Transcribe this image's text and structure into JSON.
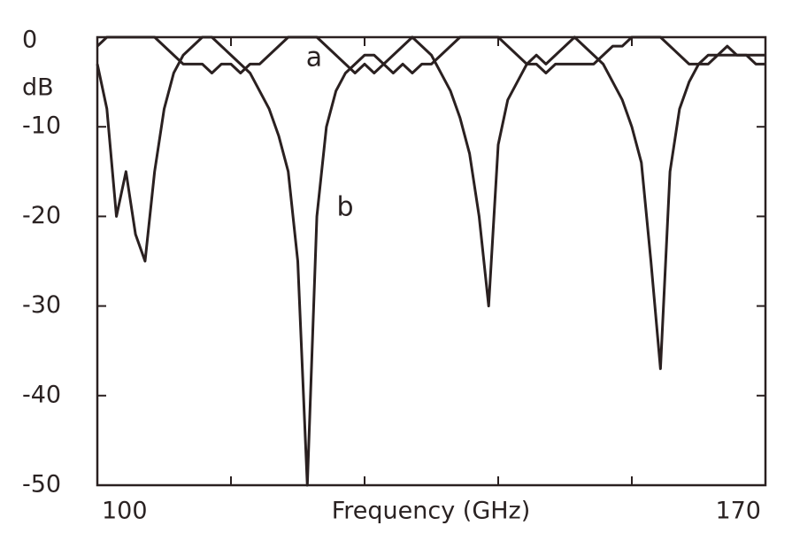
{
  "chart_data": {
    "type": "line",
    "y_label": "dB",
    "x_label": "Frequency (GHz)",
    "x": [
      100,
      101,
      102,
      103,
      104,
      105,
      106,
      107,
      108,
      109,
      110,
      111,
      112,
      113,
      114,
      115,
      116,
      117,
      118,
      119,
      120,
      121,
      122,
      123,
      124,
      125,
      126,
      127,
      128,
      129,
      130,
      131,
      132,
      133,
      134,
      135,
      136,
      137,
      138,
      139,
      140,
      141,
      142,
      143,
      144,
      145,
      146,
      147,
      148,
      149,
      150,
      151,
      152,
      153,
      154,
      155,
      156,
      157,
      158,
      159,
      160,
      161,
      162,
      163,
      164,
      165,
      166,
      167,
      168,
      169,
      170
    ],
    "series": [
      {
        "name": "a",
        "color": "#2a2020",
        "values": [
          -1,
          0,
          0,
          0,
          0,
          0,
          0,
          -1,
          -2,
          -3,
          -3,
          -3,
          -4,
          -3,
          -3,
          -4,
          -3,
          -3,
          -2,
          -1,
          0,
          0,
          0,
          0,
          -1,
          -2,
          -3,
          -4,
          -3,
          -4,
          -3,
          -4,
          -3,
          -4,
          -3,
          -3,
          -2,
          -1,
          0,
          0,
          0,
          0,
          0,
          -1,
          -2,
          -3,
          -3,
          -4,
          -3,
          -3,
          -3,
          -3,
          -3,
          -2,
          -1,
          -1,
          0,
          0,
          0,
          0,
          -1,
          -2,
          -3,
          -3,
          -3,
          -2,
          -2,
          -2,
          -2,
          -2,
          -2
        ]
      },
      {
        "name": "b",
        "color": "#2a2020",
        "values": [
          -3,
          -8,
          -20,
          -15,
          -22,
          -25,
          -15,
          -8,
          -4,
          -2,
          -1,
          0,
          0,
          -1,
          -2,
          -3,
          -4,
          -6,
          -8,
          -11,
          -15,
          -25,
          -50,
          -20,
          -10,
          -6,
          -4,
          -3,
          -2,
          -2,
          -3,
          -2,
          -1,
          0,
          -1,
          -2,
          -4,
          -6,
          -9,
          -13,
          -20,
          -30,
          -12,
          -7,
          -5,
          -3,
          -2,
          -3,
          -2,
          -1,
          0,
          -1,
          -2,
          -3,
          -5,
          -7,
          -10,
          -14,
          -25,
          -37,
          -15,
          -8,
          -5,
          -3,
          -2,
          -2,
          -1,
          -2,
          -2,
          -3,
          -3
        ]
      }
    ],
    "xlim": [
      100,
      170
    ],
    "xticks": [
      100,
      170
    ],
    "x_minor_ticks": [
      114,
      128,
      142,
      156
    ],
    "ylim": [
      -50,
      0
    ],
    "yticks": [
      0,
      -10,
      -20,
      -30,
      -40,
      -50
    ]
  }
}
